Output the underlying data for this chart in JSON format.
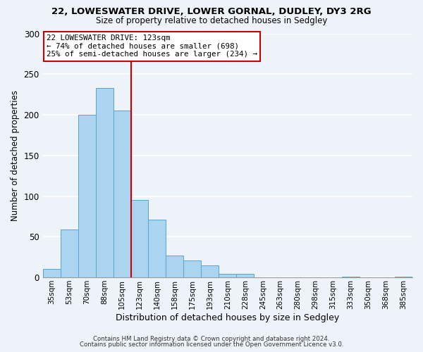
{
  "title_line1": "22, LOWESWATER DRIVE, LOWER GORNAL, DUDLEY, DY3 2RG",
  "title_line2": "Size of property relative to detached houses in Sedgley",
  "xlabel": "Distribution of detached houses by size in Sedgley",
  "ylabel": "Number of detached properties",
  "bar_labels": [
    "35sqm",
    "53sqm",
    "70sqm",
    "88sqm",
    "105sqm",
    "123sqm",
    "140sqm",
    "158sqm",
    "175sqm",
    "193sqm",
    "210sqm",
    "228sqm",
    "245sqm",
    "263sqm",
    "280sqm",
    "298sqm",
    "315sqm",
    "333sqm",
    "350sqm",
    "368sqm",
    "385sqm"
  ],
  "bar_values": [
    10,
    59,
    200,
    233,
    205,
    95,
    71,
    27,
    21,
    15,
    4,
    4,
    0,
    0,
    0,
    0,
    0,
    1,
    0,
    0,
    1
  ],
  "bar_color": "#aad4f0",
  "bar_edge_color": "#5ba3d0",
  "highlight_line_idx": 5,
  "highlight_line_color": "#cc0000",
  "annotation_line1": "22 LOWESWATER DRIVE: 123sqm",
  "annotation_line2": "← 74% of detached houses are smaller (698)",
  "annotation_line3": "25% of semi-detached houses are larger (234) →",
  "annotation_box_color": "#ffffff",
  "annotation_box_edge": "#cc0000",
  "ylim": [
    0,
    300
  ],
  "yticks": [
    0,
    50,
    100,
    150,
    200,
    250,
    300
  ],
  "footer_line1": "Contains HM Land Registry data © Crown copyright and database right 2024.",
  "footer_line2": "Contains public sector information licensed under the Open Government Licence v3.0.",
  "bg_color": "#eef2f9"
}
